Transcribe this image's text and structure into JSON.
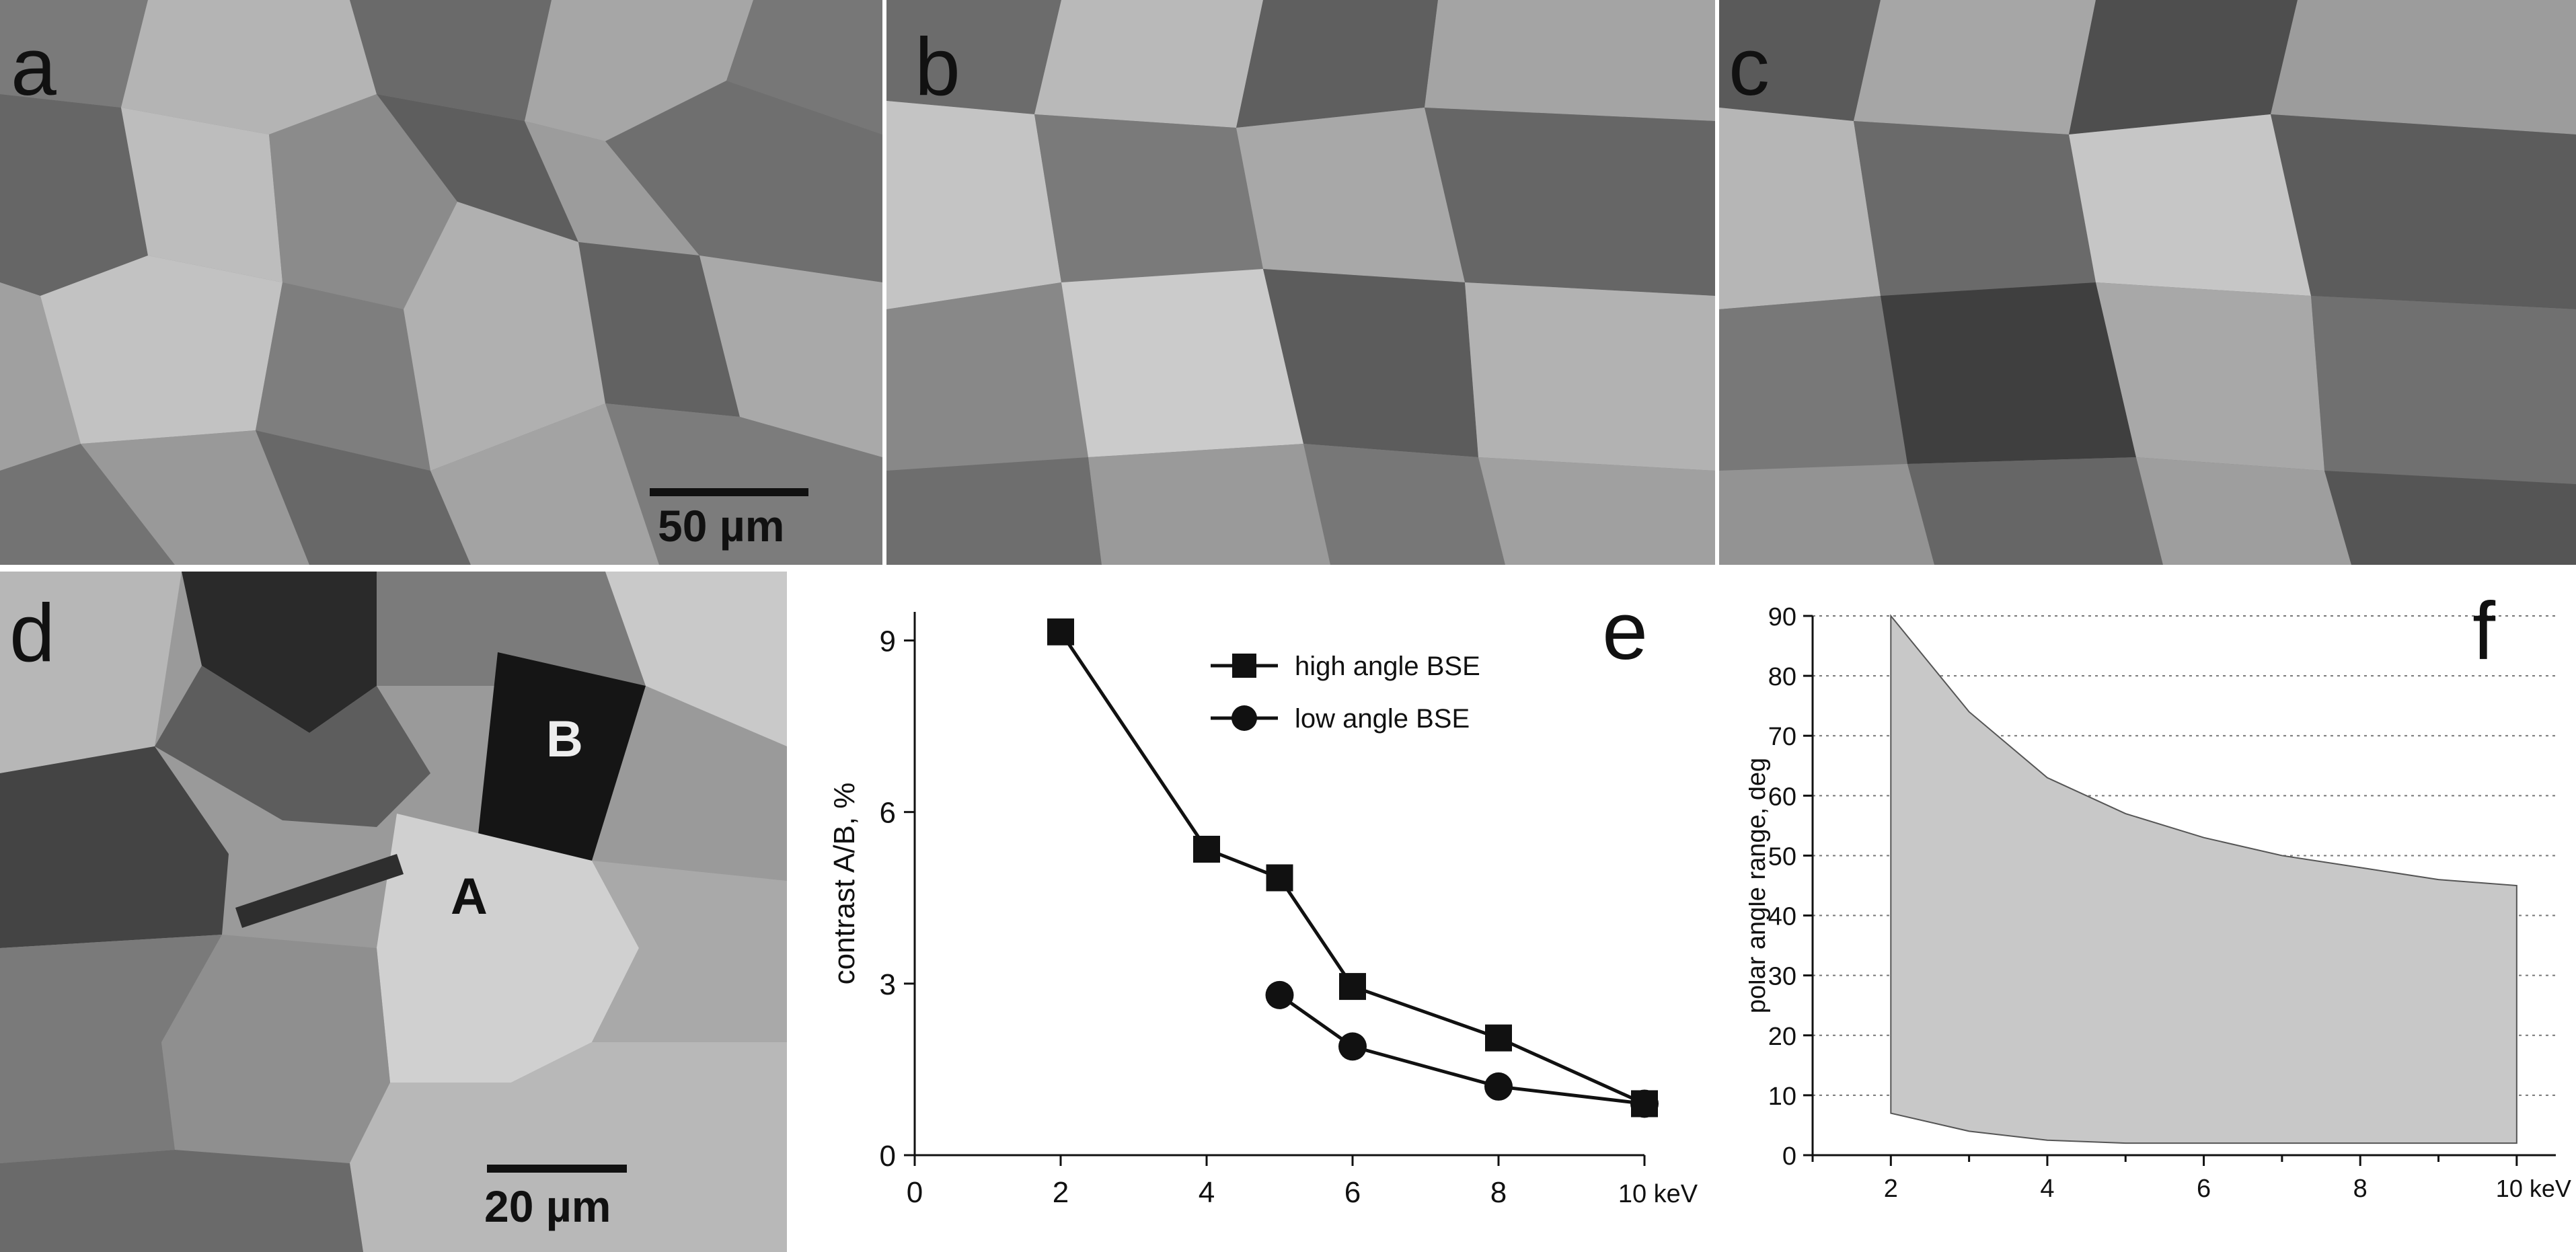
{
  "panels": {
    "a": {
      "letter": "a",
      "scale_label": "50 µm"
    },
    "b": {
      "letter": "b"
    },
    "c": {
      "letter": "c"
    },
    "d": {
      "letter": "d",
      "scale_label": "20 µm",
      "grain_label_a": "A",
      "grain_label_b": "B"
    },
    "e": {
      "letter": "e"
    },
    "f": {
      "letter": "f"
    }
  },
  "chart_data": [
    {
      "id": "e",
      "type": "line",
      "ylabel": "contrast A/B, %",
      "xlabel": "",
      "x_unit_label": "10 keV",
      "xlim": [
        0,
        10
      ],
      "ylim": [
        0,
        9.5
      ],
      "xticks": [
        "0",
        "2",
        "4",
        "6",
        "8"
      ],
      "yticks": [
        "0",
        "3",
        "6",
        "9"
      ],
      "series": [
        {
          "name": "high angle BSE",
          "marker": "square",
          "x": [
            2,
            4,
            5,
            6,
            8,
            10
          ],
          "y": [
            9.15,
            5.35,
            4.85,
            2.95,
            2.05,
            0.9
          ]
        },
        {
          "name": "low angle BSE",
          "marker": "circle",
          "x": [
            5,
            6,
            8,
            10
          ],
          "y": [
            2.8,
            1.9,
            1.2,
            0.9
          ]
        }
      ],
      "legend_position": "top-right"
    },
    {
      "id": "f",
      "type": "area",
      "ylabel": "polar angle range, deg",
      "x_unit_label": "10 keV",
      "xlim": [
        1,
        10.5
      ],
      "ylim": [
        0,
        90
      ],
      "xticks": [
        "2",
        "4",
        "6",
        "8"
      ],
      "yticks": [
        "0",
        "10",
        "20",
        "30",
        "40",
        "50",
        "60",
        "70",
        "80",
        "90"
      ],
      "grid": true,
      "upper": {
        "x": [
          2,
          3,
          4,
          5,
          6,
          7,
          8,
          9,
          10
        ],
        "y": [
          90,
          74,
          63,
          57,
          53,
          50,
          48,
          46,
          45
        ]
      },
      "lower": {
        "x": [
          2,
          3,
          4,
          5,
          6,
          7,
          8,
          9,
          10
        ],
        "y": [
          7,
          4,
          2.5,
          2,
          2,
          2,
          2,
          2,
          2
        ]
      },
      "fill_color": "#c8c8c8"
    }
  ]
}
